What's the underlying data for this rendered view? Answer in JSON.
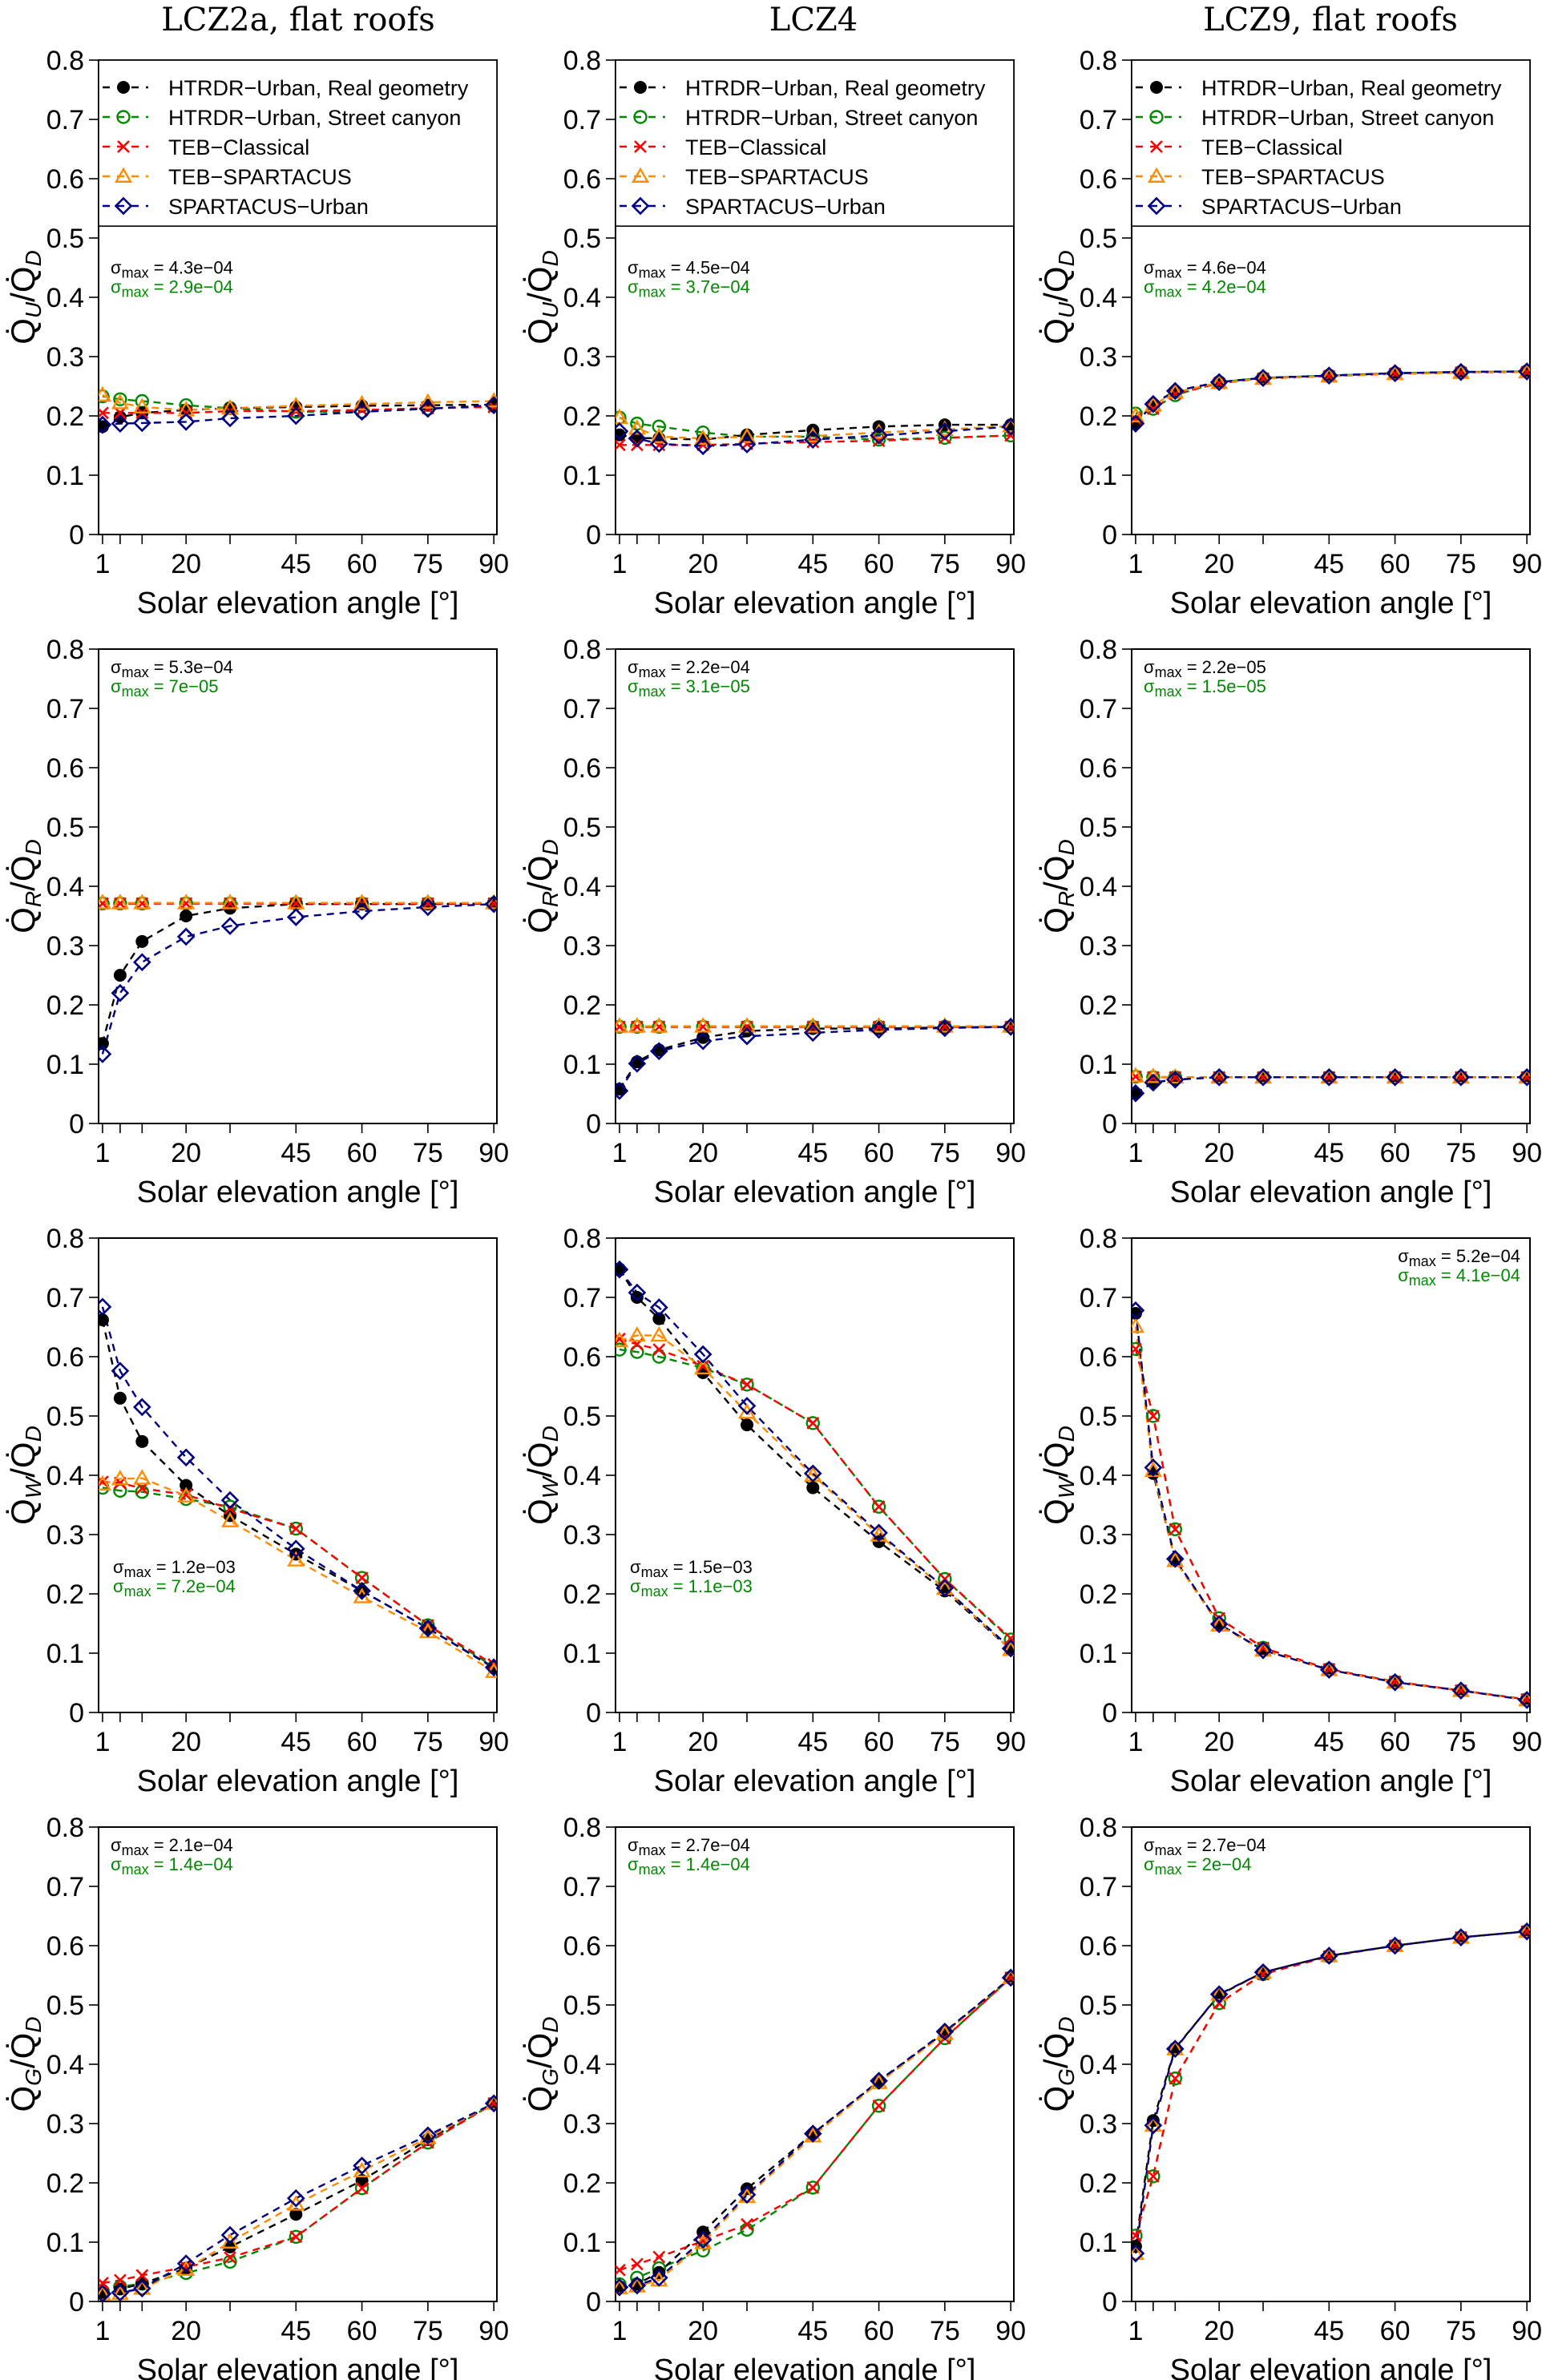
{
  "chart_data": {
    "type": "line",
    "layout": "grid-4x3",
    "x_ticks": [
      1,
      20,
      45,
      60,
      75,
      90
    ],
    "x_minor_ticks": [
      5,
      10,
      30
    ],
    "x": [
      1,
      5,
      10,
      20,
      30,
      45,
      60,
      75,
      90
    ],
    "xlabel": "Solar elevation angle [°]",
    "xlim": [
      1,
      90
    ],
    "ylim": [
      0,
      0.8
    ],
    "y_ticks": [
      "0",
      "0.1",
      "0.2",
      "0.3",
      "0.4",
      "0.5",
      "0.6",
      "0.7",
      "0.8"
    ],
    "grid": false,
    "columns": [
      "LCZ2a, flat roofs",
      "LCZ4",
      "LCZ9, flat roofs"
    ],
    "rows": [
      {
        "ylabel_main": "Q",
        "ylabel_sub": "U",
        "ylabel_den": "Q",
        "ylabel_den_sub": "D",
        "ylabel": "Q̇U/Q̇D"
      },
      {
        "ylabel_main": "Q",
        "ylabel_sub": "R",
        "ylabel_den": "Q",
        "ylabel_den_sub": "D",
        "ylabel": "Q̇R/Q̇D"
      },
      {
        "ylabel_main": "Q",
        "ylabel_sub": "W",
        "ylabel_den": "Q",
        "ylabel_den_sub": "D",
        "ylabel": "Q̇W/Q̇D"
      },
      {
        "ylabel_main": "Q",
        "ylabel_sub": "G",
        "ylabel_den": "Q",
        "ylabel_den_sub": "D",
        "ylabel": "Q̇G/Q̇D"
      }
    ],
    "legend": {
      "placement": "top (inside, rows 1)",
      "entries": [
        {
          "key": "real",
          "label": "HTRDR−Urban, Real geometry",
          "color": "#000000",
          "marker": "filled-circle"
        },
        {
          "key": "canyon",
          "label": "HTRDR−Urban, Street canyon",
          "color": "#008800",
          "marker": "open-circle"
        },
        {
          "key": "teb",
          "label": "TEB−Classical",
          "color": "#ff0000",
          "marker": "cross"
        },
        {
          "key": "tebsp",
          "label": "TEB−SPARTACUS",
          "color": "#ff8c00",
          "marker": "open-triangle"
        },
        {
          "key": "sp",
          "label": "SPARTACUS−Urban",
          "color": "#000080",
          "marker": "open-diamond"
        }
      ]
    },
    "sigma_label": "σ",
    "sigma_sub": "max",
    "panels": [
      {
        "row": 0,
        "col": 0,
        "sigma_black": "4.3e−04",
        "sigma_green": "2.9e−04",
        "sigma_pos": "left-mid",
        "series": {
          "real": [
            0.182,
            0.198,
            0.205,
            0.21,
            0.213,
            0.215,
            0.217,
            0.218,
            0.219
          ],
          "canyon": [
            0.233,
            0.228,
            0.225,
            0.218,
            0.213,
            0.207,
            0.207,
            0.212,
            0.217
          ],
          "teb": [
            0.205,
            0.205,
            0.205,
            0.205,
            0.208,
            0.208,
            0.21,
            0.213,
            0.215
          ],
          "tebsp": [
            0.235,
            0.222,
            0.215,
            0.21,
            0.213,
            0.217,
            0.22,
            0.223,
            0.225
          ],
          "sp": [
            0.185,
            0.187,
            0.188,
            0.19,
            0.196,
            0.2,
            0.207,
            0.212,
            0.218
          ]
        }
      },
      {
        "row": 0,
        "col": 1,
        "sigma_black": "4.5e−04",
        "sigma_green": "3.7e−04",
        "sigma_pos": "left-mid",
        "series": {
          "real": [
            0.168,
            0.163,
            0.162,
            0.16,
            0.168,
            0.176,
            0.182,
            0.185,
            0.185
          ],
          "canyon": [
            0.197,
            0.187,
            0.182,
            0.172,
            0.165,
            0.165,
            0.16,
            0.163,
            0.167
          ],
          "teb": [
            0.151,
            0.151,
            0.151,
            0.151,
            0.153,
            0.156,
            0.158,
            0.163,
            0.167
          ],
          "tebsp": [
            0.197,
            0.179,
            0.165,
            0.162,
            0.165,
            0.166,
            0.172,
            0.177,
            0.183
          ],
          "sp": [
            0.174,
            0.162,
            0.153,
            0.149,
            0.152,
            0.16,
            0.167,
            0.174,
            0.182
          ]
        }
      },
      {
        "row": 0,
        "col": 2,
        "sigma_black": "4.6e−04",
        "sigma_green": "4.2e−04",
        "sigma_pos": "left-mid",
        "series": {
          "real": [
            0.187,
            0.22,
            0.242,
            0.257,
            0.264,
            0.268,
            0.272,
            0.274,
            0.275
          ],
          "canyon": [
            0.204,
            0.212,
            0.235,
            0.257,
            0.264,
            0.268,
            0.272,
            0.274,
            0.275
          ],
          "teb": [
            0.195,
            0.212,
            0.237,
            0.255,
            0.263,
            0.267,
            0.271,
            0.273,
            0.274
          ],
          "tebsp": [
            0.2,
            0.218,
            0.24,
            0.256,
            0.263,
            0.267,
            0.271,
            0.273,
            0.274
          ],
          "sp": [
            0.187,
            0.22,
            0.242,
            0.257,
            0.264,
            0.268,
            0.272,
            0.274,
            0.275
          ]
        }
      },
      {
        "row": 1,
        "col": 0,
        "sigma_black": "5.3e−04",
        "sigma_green": "7e−05",
        "sigma_pos": "left-top",
        "series": {
          "real": [
            0.135,
            0.25,
            0.307,
            0.35,
            0.363,
            0.37,
            0.37,
            0.37,
            0.371
          ],
          "canyon": [
            0.371,
            0.371,
            0.371,
            0.371,
            0.371,
            0.371,
            0.371,
            0.371,
            0.371
          ],
          "teb": [
            0.371,
            0.371,
            0.371,
            0.371,
            0.371,
            0.371,
            0.371,
            0.371,
            0.371
          ],
          "tebsp": [
            0.372,
            0.372,
            0.372,
            0.372,
            0.372,
            0.372,
            0.372,
            0.372,
            0.372
          ],
          "sp": [
            0.117,
            0.22,
            0.272,
            0.315,
            0.333,
            0.348,
            0.358,
            0.365,
            0.37
          ]
        }
      },
      {
        "row": 1,
        "col": 1,
        "sigma_black": "2.2e−04",
        "sigma_green": "3.1e−05",
        "sigma_pos": "left-top",
        "series": {
          "real": [
            0.058,
            0.104,
            0.124,
            0.145,
            0.156,
            0.16,
            0.16,
            0.162,
            0.163
          ],
          "canyon": [
            0.163,
            0.163,
            0.163,
            0.163,
            0.163,
            0.163,
            0.163,
            0.163,
            0.163
          ],
          "teb": [
            0.163,
            0.163,
            0.163,
            0.163,
            0.163,
            0.163,
            0.163,
            0.163,
            0.163
          ],
          "tebsp": [
            0.164,
            0.164,
            0.164,
            0.164,
            0.164,
            0.164,
            0.164,
            0.164,
            0.164
          ],
          "sp": [
            0.055,
            0.101,
            0.122,
            0.139,
            0.147,
            0.153,
            0.158,
            0.161,
            0.163
          ]
        }
      },
      {
        "row": 1,
        "col": 2,
        "sigma_black": "2.2e−05",
        "sigma_green": "1.5e−05",
        "sigma_pos": "left-top",
        "series": {
          "real": [
            0.051,
            0.069,
            0.074,
            0.078,
            0.078,
            0.078,
            0.078,
            0.078,
            0.078
          ],
          "canyon": [
            0.079,
            0.078,
            0.078,
            0.078,
            0.078,
            0.078,
            0.078,
            0.078,
            0.078
          ],
          "teb": [
            0.079,
            0.078,
            0.078,
            0.078,
            0.078,
            0.078,
            0.078,
            0.078,
            0.078
          ],
          "tebsp": [
            0.08,
            0.079,
            0.078,
            0.078,
            0.078,
            0.078,
            0.078,
            0.078,
            0.078
          ],
          "sp": [
            0.051,
            0.069,
            0.074,
            0.078,
            0.078,
            0.078,
            0.078,
            0.078,
            0.078
          ]
        }
      },
      {
        "row": 2,
        "col": 0,
        "sigma_black": "1.2e−03",
        "sigma_green": "7.2e−04",
        "sigma_pos": "left-low",
        "series": {
          "real": [
            0.662,
            0.53,
            0.457,
            0.383,
            0.332,
            0.267,
            0.205,
            0.142,
            0.075
          ],
          "canyon": [
            0.379,
            0.374,
            0.372,
            0.36,
            0.347,
            0.31,
            0.227,
            0.147,
            0.077
          ],
          "teb": [
            0.389,
            0.387,
            0.378,
            0.367,
            0.344,
            0.31,
            0.227,
            0.147,
            0.081
          ],
          "tebsp": [
            0.385,
            0.394,
            0.395,
            0.365,
            0.323,
            0.257,
            0.195,
            0.136,
            0.069
          ],
          "sp": [
            0.684,
            0.576,
            0.515,
            0.43,
            0.358,
            0.276,
            0.205,
            0.142,
            0.076
          ]
        }
      },
      {
        "row": 2,
        "col": 1,
        "sigma_black": "1.5e−03",
        "sigma_green": "1.1e−03",
        "sigma_pos": "left-low",
        "series": {
          "real": [
            0.748,
            0.7,
            0.664,
            0.573,
            0.485,
            0.379,
            0.288,
            0.205,
            0.106
          ],
          "canyon": [
            0.612,
            0.608,
            0.6,
            0.581,
            0.553,
            0.488,
            0.347,
            0.225,
            0.123
          ],
          "teb": [
            0.63,
            0.621,
            0.612,
            0.584,
            0.553,
            0.488,
            0.347,
            0.225,
            0.125
          ],
          "tebsp": [
            0.627,
            0.636,
            0.636,
            0.581,
            0.506,
            0.4,
            0.299,
            0.209,
            0.106
          ],
          "sp": [
            0.747,
            0.708,
            0.683,
            0.604,
            0.517,
            0.403,
            0.303,
            0.21,
            0.108
          ]
        }
      },
      {
        "row": 2,
        "col": 2,
        "sigma_black": "5.2e−04",
        "sigma_green": "4.1e−04",
        "sigma_pos": "right-top",
        "series": {
          "real": [
            0.673,
            0.403,
            0.257,
            0.149,
            0.105,
            0.072,
            0.051,
            0.037,
            0.021
          ],
          "canyon": [
            0.613,
            0.5,
            0.309,
            0.159,
            0.109,
            0.073,
            0.052,
            0.037,
            0.022
          ],
          "teb": [
            0.613,
            0.5,
            0.309,
            0.159,
            0.109,
            0.073,
            0.052,
            0.037,
            0.022
          ],
          "tebsp": [
            0.651,
            0.408,
            0.256,
            0.147,
            0.105,
            0.072,
            0.051,
            0.037,
            0.021
          ],
          "sp": [
            0.678,
            0.413,
            0.259,
            0.149,
            0.105,
            0.072,
            0.051,
            0.037,
            0.021
          ]
        }
      },
      {
        "row": 3,
        "col": 0,
        "sigma_black": "2.1e−04",
        "sigma_green": "1.4e−04",
        "sigma_pos": "left-top",
        "series": {
          "real": [
            0.015,
            0.021,
            0.03,
            0.056,
            0.092,
            0.147,
            0.204,
            0.273,
            0.334
          ],
          "canyon": [
            0.018,
            0.025,
            0.03,
            0.048,
            0.067,
            0.109,
            0.191,
            0.268,
            0.334
          ],
          "teb": [
            0.031,
            0.036,
            0.044,
            0.058,
            0.074,
            0.109,
            0.191,
            0.268,
            0.334
          ],
          "tebsp": [
            0.012,
            0.013,
            0.022,
            0.054,
            0.1,
            0.164,
            0.22,
            0.276,
            0.334
          ],
          "sp": [
            0.013,
            0.015,
            0.022,
            0.064,
            0.112,
            0.174,
            0.229,
            0.28,
            0.334
          ]
        }
      },
      {
        "row": 3,
        "col": 1,
        "sigma_black": "2.7e−04",
        "sigma_green": "1.4e−04",
        "sigma_pos": "left-top",
        "series": {
          "real": [
            0.025,
            0.029,
            0.049,
            0.117,
            0.19,
            0.283,
            0.371,
            0.454,
            0.546
          ],
          "canyon": [
            0.029,
            0.04,
            0.056,
            0.086,
            0.121,
            0.192,
            0.33,
            0.444,
            0.546
          ],
          "teb": [
            0.053,
            0.063,
            0.075,
            0.102,
            0.13,
            0.192,
            0.33,
            0.444,
            0.546
          ],
          "tebsp": [
            0.023,
            0.026,
            0.036,
            0.099,
            0.177,
            0.279,
            0.369,
            0.452,
            0.546
          ],
          "sp": [
            0.024,
            0.027,
            0.04,
            0.104,
            0.18,
            0.283,
            0.372,
            0.455,
            0.546
          ]
        }
      },
      {
        "row": 3,
        "col": 2,
        "sigma_black": "2.7e−04",
        "sigma_green": "2e−04",
        "sigma_pos": "left-top",
        "series": {
          "real": [
            0.093,
            0.305,
            0.427,
            0.517,
            0.555,
            0.583,
            0.6,
            0.614,
            0.624
          ],
          "canyon": [
            0.111,
            0.211,
            0.376,
            0.503,
            0.552,
            0.582,
            0.6,
            0.614,
            0.624
          ],
          "teb": [
            0.111,
            0.211,
            0.376,
            0.503,
            0.552,
            0.582,
            0.6,
            0.614,
            0.624
          ],
          "tebsp": [
            0.081,
            0.297,
            0.426,
            0.518,
            0.555,
            0.583,
            0.6,
            0.614,
            0.624
          ],
          "sp": [
            0.081,
            0.297,
            0.426,
            0.518,
            0.555,
            0.583,
            0.6,
            0.614,
            0.624
          ]
        }
      }
    ]
  }
}
